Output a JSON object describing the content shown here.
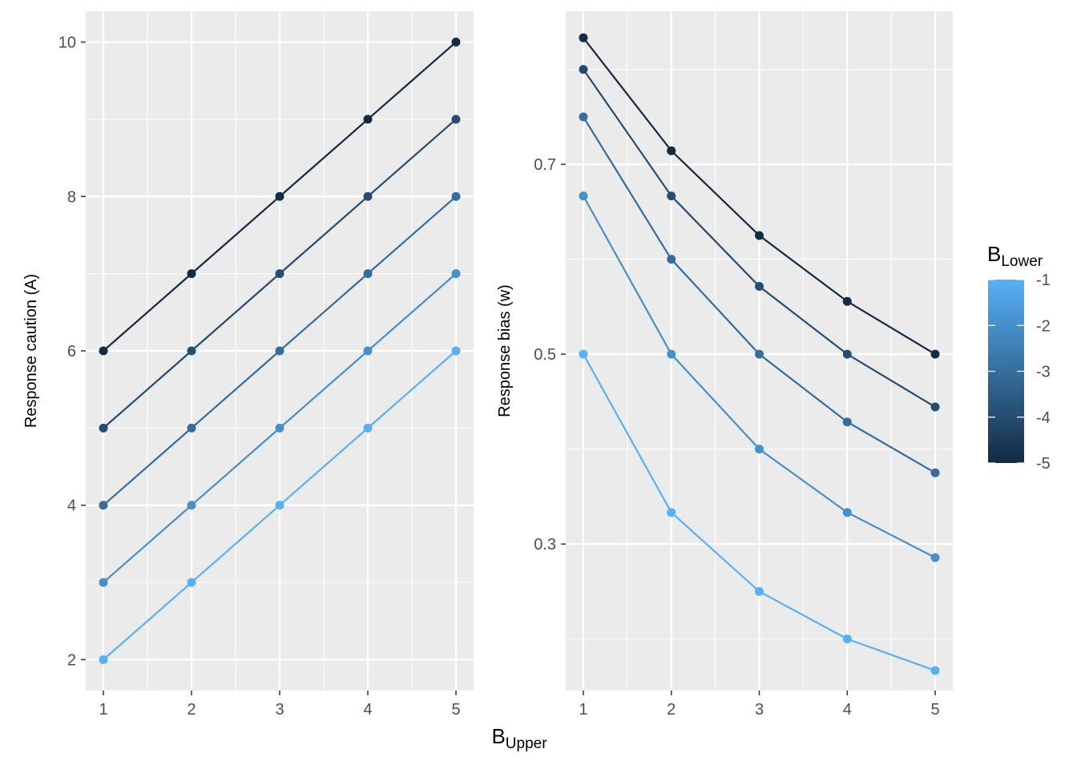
{
  "x_axis": {
    "title": "B",
    "title_sub": "Upper"
  },
  "legend": {
    "title": "B",
    "title_sub": "Lower",
    "labels": [
      "-1",
      "-2",
      "-3",
      "-4",
      "-5"
    ],
    "values": [
      -1,
      -2,
      -3,
      -4,
      -5
    ],
    "color_low": "#132B43",
    "color_high": "#56B1F7"
  },
  "chart_data": [
    {
      "type": "line",
      "ylabel": "Response caution (A)",
      "x": [
        1,
        2,
        3,
        4,
        5
      ],
      "xticks": [
        "1",
        "2",
        "3",
        "4",
        "5"
      ],
      "yticks": [
        "2",
        "4",
        "6",
        "8",
        "10"
      ],
      "ytick_values": [
        2,
        4,
        6,
        8,
        10
      ],
      "ylim": [
        1.6,
        10.4
      ],
      "series": [
        {
          "b_lower": -1,
          "values": [
            2,
            3,
            4,
            5,
            6
          ]
        },
        {
          "b_lower": -2,
          "values": [
            3,
            4,
            5,
            6,
            7
          ]
        },
        {
          "b_lower": -3,
          "values": [
            4,
            5,
            6,
            7,
            8
          ]
        },
        {
          "b_lower": -4,
          "values": [
            5,
            6,
            7,
            8,
            9
          ]
        },
        {
          "b_lower": -5,
          "values": [
            6,
            7,
            8,
            9,
            10
          ]
        }
      ]
    },
    {
      "type": "line",
      "ylabel": "Response bias (w)",
      "x": [
        1,
        2,
        3,
        4,
        5
      ],
      "xticks": [
        "1",
        "2",
        "3",
        "4",
        "5"
      ],
      "yticks": [
        "0.3",
        "0.5",
        "0.7"
      ],
      "ytick_values": [
        0.3,
        0.5,
        0.7
      ],
      "ylim": [
        0.1457,
        0.8613
      ],
      "series": [
        {
          "b_lower": -1,
          "values": [
            0.5,
            0.3333,
            0.25,
            0.2,
            0.1667
          ]
        },
        {
          "b_lower": -2,
          "values": [
            0.6667,
            0.5,
            0.4,
            0.3333,
            0.2857
          ]
        },
        {
          "b_lower": -3,
          "values": [
            0.75,
            0.6,
            0.5,
            0.4286,
            0.375
          ]
        },
        {
          "b_lower": -4,
          "values": [
            0.8,
            0.6667,
            0.5714,
            0.5,
            0.4444
          ]
        },
        {
          "b_lower": -5,
          "values": [
            0.8333,
            0.7143,
            0.625,
            0.5556,
            0.5
          ]
        }
      ]
    }
  ]
}
